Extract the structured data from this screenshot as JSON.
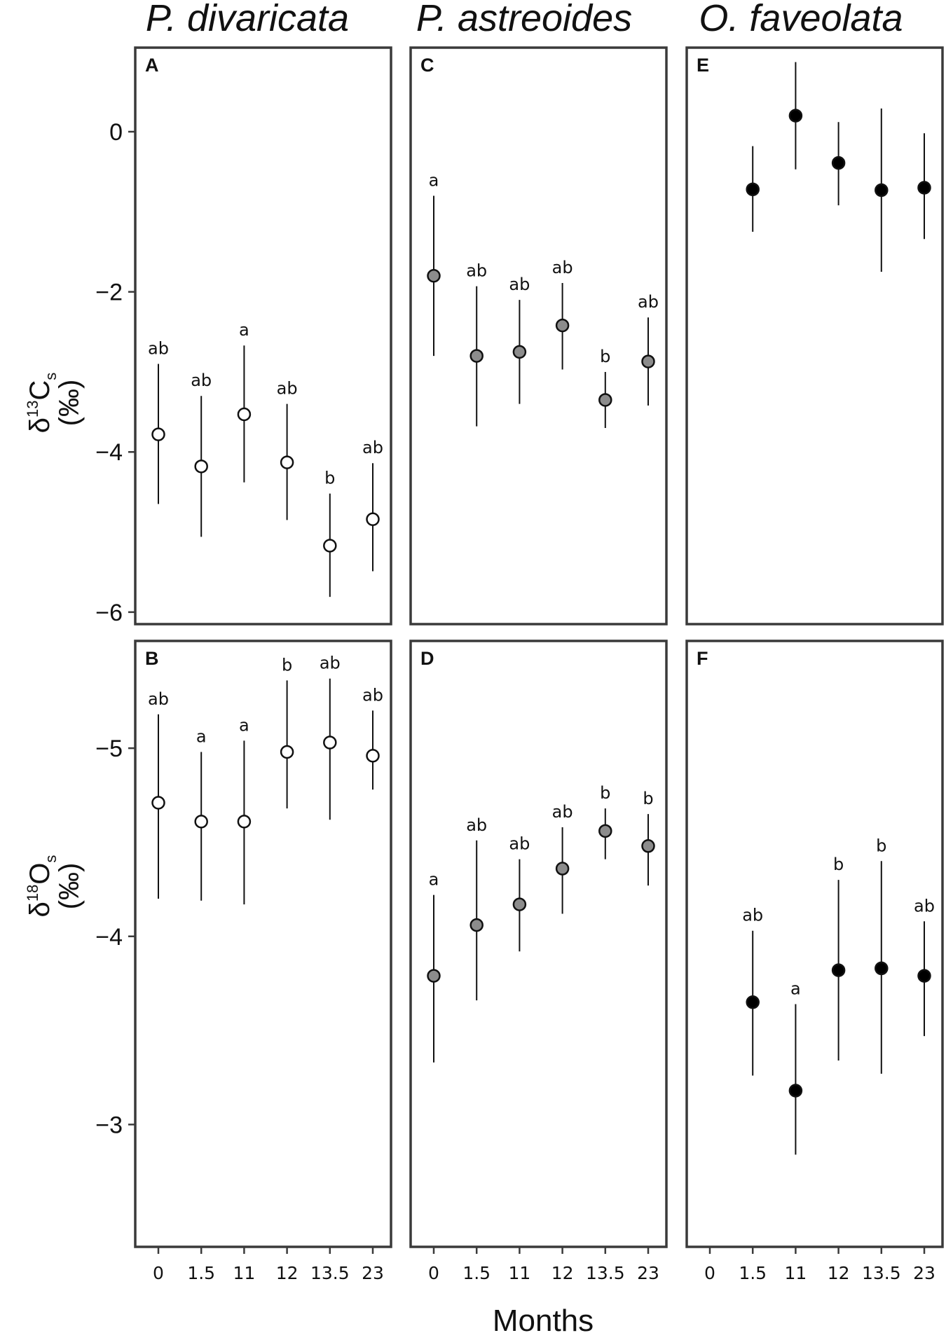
{
  "x_axis": {
    "title": "Months",
    "categories": [
      "0",
      "1.5",
      "11",
      "12",
      "13.5",
      "23"
    ]
  },
  "columns": [
    {
      "title": "P. divaricata",
      "marker_fill": "#ffffff"
    },
    {
      "title": "P. astreoides",
      "marker_fill": "#8c8c8c"
    },
    {
      "title": "O. faveolata",
      "marker_fill": "#000000"
    }
  ],
  "rows": [
    {
      "ylabel_parts": {
        "delta": "δ",
        "mass": "13",
        "element": "C",
        "sub": "s",
        "unit": "(‰)"
      },
      "ylim": [
        -6.15,
        1.05
      ],
      "reversed": false,
      "yticks": [
        0,
        -2,
        -4,
        -6
      ],
      "ytick_labels": [
        "0",
        "−2",
        "−4",
        "−6"
      ]
    },
    {
      "ylabel_parts": {
        "delta": "δ",
        "mass": "18",
        "element": "O",
        "sub": "s",
        "unit": "(‰)"
      },
      "ylim": [
        -5.57,
        -2.35
      ],
      "reversed": true,
      "yticks": [
        -5,
        -4,
        -3
      ],
      "ytick_labels": [
        "−5",
        "−4",
        "−3"
      ]
    }
  ],
  "chart_data": [
    {
      "panel": "A",
      "type": "scatter",
      "species": "P. divaricata",
      "variable": "δ13Cs",
      "x": [
        "0",
        "1.5",
        "11",
        "12",
        "13.5",
        "23"
      ],
      "y": [
        -3.78,
        -4.18,
        -3.53,
        -4.13,
        -5.17,
        -4.84
      ],
      "y_low": [
        -4.65,
        -5.06,
        -4.38,
        -4.85,
        -5.81,
        -5.49
      ],
      "y_high": [
        -2.9,
        -3.3,
        -2.67,
        -3.4,
        -4.52,
        -4.14
      ],
      "labels": [
        "ab",
        "ab",
        "a",
        "ab",
        "b",
        "ab"
      ]
    },
    {
      "panel": "B",
      "type": "scatter",
      "species": "P. divaricata",
      "variable": "δ18Os",
      "x": [
        "0",
        "1.5",
        "11",
        "12",
        "13.5",
        "23"
      ],
      "y": [
        -4.71,
        -4.61,
        -4.61,
        -4.98,
        -5.03,
        -4.96
      ],
      "y_low": [
        -4.2,
        -4.19,
        -4.17,
        -4.68,
        -4.62,
        -4.78
      ],
      "y_high": [
        -5.18,
        -4.98,
        -5.04,
        -5.36,
        -5.37,
        -5.2
      ],
      "labels": [
        "ab",
        "a",
        "a",
        "b",
        "ab",
        "ab"
      ]
    },
    {
      "panel": "C",
      "type": "scatter",
      "species": "P. astreoides",
      "variable": "δ13Cs",
      "x": [
        "0",
        "1.5",
        "11",
        "12",
        "13.5",
        "23"
      ],
      "y": [
        -1.8,
        -2.8,
        -2.75,
        -2.42,
        -3.35,
        -2.87
      ],
      "y_low": [
        -2.8,
        -3.68,
        -3.4,
        -2.97,
        -3.7,
        -3.42
      ],
      "y_high": [
        -0.8,
        -1.93,
        -2.1,
        -1.89,
        -3.0,
        -2.32
      ],
      "labels": [
        "a",
        "ab",
        "ab",
        "ab",
        "b",
        "ab"
      ]
    },
    {
      "panel": "D",
      "type": "scatter",
      "species": "P. astreoides",
      "variable": "δ18Os",
      "x": [
        "0",
        "1.5",
        "11",
        "12",
        "13.5",
        "23"
      ],
      "y": [
        -3.79,
        -4.06,
        -4.17,
        -4.36,
        -4.56,
        -4.48
      ],
      "y_low": [
        -3.33,
        -3.66,
        -3.92,
        -4.12,
        -4.41,
        -4.27
      ],
      "y_high": [
        -4.22,
        -4.51,
        -4.41,
        -4.58,
        -4.68,
        -4.65
      ],
      "labels": [
        "a",
        "ab",
        "ab",
        "ab",
        "b",
        "b"
      ]
    },
    {
      "panel": "E",
      "type": "scatter",
      "species": "O. faveolata",
      "variable": "δ13Cs",
      "x": [
        "1.5",
        "11",
        "12",
        "13.5",
        "23"
      ],
      "y": [
        -0.72,
        0.2,
        -0.39,
        -0.73,
        -0.7
      ],
      "y_low": [
        -1.25,
        -0.47,
        -0.92,
        -1.75,
        -1.34
      ],
      "y_high": [
        -0.18,
        0.87,
        0.12,
        0.29,
        -0.02
      ],
      "labels": [
        "",
        "",
        "",
        "",
        ""
      ]
    },
    {
      "panel": "F",
      "type": "scatter",
      "species": "O. faveolata",
      "variable": "δ18Os",
      "x": [
        "1.5",
        "11",
        "12",
        "13.5",
        "23"
      ],
      "y": [
        -3.65,
        -3.18,
        -3.82,
        -3.83,
        -3.79
      ],
      "y_low": [
        -3.26,
        -2.84,
        -3.34,
        -3.27,
        -3.47
      ],
      "y_high": [
        -4.03,
        -3.64,
        -4.3,
        -4.4,
        -4.08
      ],
      "labels": [
        "ab",
        "a",
        "b",
        "b",
        "ab"
      ]
    }
  ]
}
